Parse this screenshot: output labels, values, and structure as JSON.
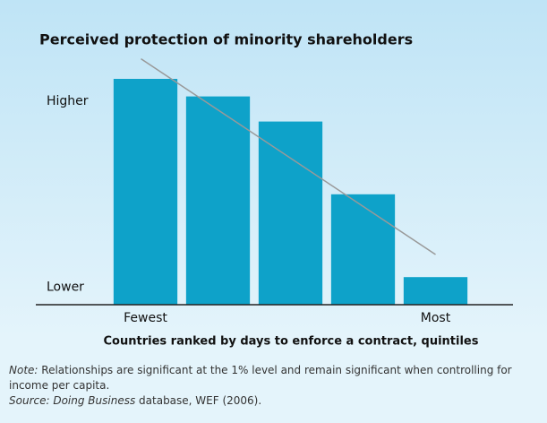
{
  "chart_data": {
    "type": "bar",
    "title": "Perceived protection of minority shareholders",
    "x_label": "Countries ranked by days to enforce a contract, quintiles",
    "categories": [
      "Fewest",
      null,
      null,
      null,
      "Most"
    ],
    "values": [
      90,
      83,
      73,
      44,
      11
    ],
    "color": "#0ea2c9",
    "ylim": [
      0,
      100
    ],
    "yticks": [
      {
        "value": 81,
        "label": "Higher"
      },
      {
        "value": 7,
        "label": "Lower"
      }
    ],
    "trend": {
      "values": [
        98,
        20
      ],
      "color": "#999999"
    },
    "note": {
      "lead": "Note:",
      "text": " Relationships are significant at the 1% level and remain significant when controlling for income per capita."
    },
    "source": {
      "lead": "Source:",
      "italic": " Doing Business",
      "text": " database, WEF (2006)."
    }
  }
}
